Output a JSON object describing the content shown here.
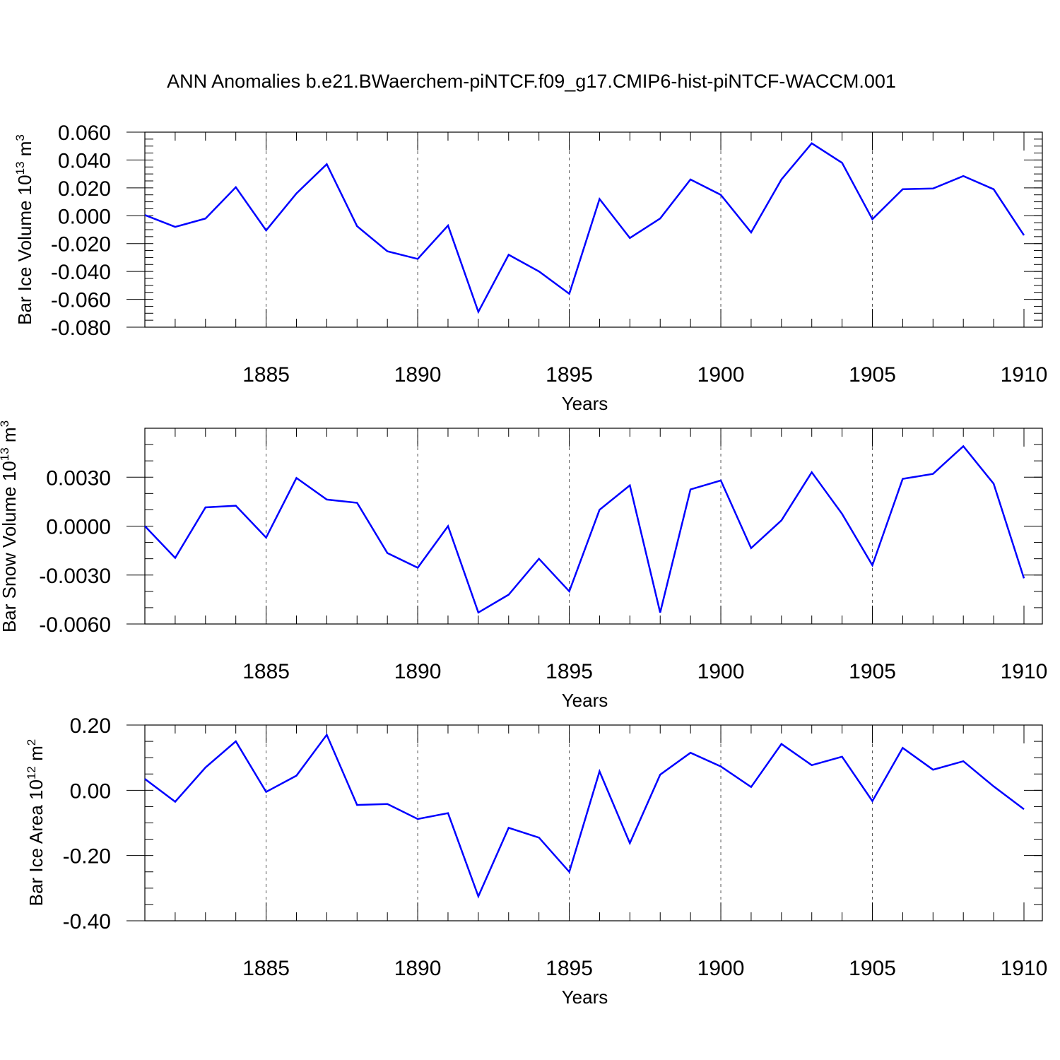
{
  "figure_title": "ANN Anomalies b.e21.BWaerchem-piNTCF.f09_g17.CMIP6-hist-piNTCF-WACCM.001",
  "chart_data": [
    {
      "type": "line",
      "title": "ANN Anomalies b.e21.BWaerchem-piNTCF.f09_g17.CMIP6-hist-piNTCF-WACCM.001",
      "xlabel": "Years",
      "ylabel": "Bar Ice Volume 10",
      "ylabel_exponent": "13",
      "ylabel_unit": "m",
      "ylabel_unit_exponent": "3",
      "xlim": [
        1881,
        1910
      ],
      "ylim": [
        -0.08,
        0.06
      ],
      "x_ticks": [
        1885,
        1890,
        1895,
        1900,
        1905,
        1910
      ],
      "y_ticks": [
        0.06,
        0.04,
        0.02,
        0.0,
        -0.02,
        -0.04,
        -0.06,
        -0.08
      ],
      "y_tick_labels": [
        "0.060",
        "0.040",
        "0.020",
        "0.000",
        "-0.020",
        "-0.040",
        "-0.060",
        "-0.080"
      ],
      "y_minor_step": 0.005,
      "x": [
        1881,
        1882,
        1883,
        1884,
        1885,
        1886,
        1887,
        1888,
        1889,
        1890,
        1891,
        1892,
        1893,
        1894,
        1895,
        1896,
        1897,
        1898,
        1899,
        1900,
        1901,
        1902,
        1903,
        1904,
        1905,
        1906,
        1907,
        1908,
        1909,
        1910
      ],
      "values": [
        0.0005,
        -0.008,
        -0.002,
        0.0205,
        -0.0105,
        0.016,
        0.037,
        -0.0075,
        -0.0255,
        -0.031,
        -0.007,
        -0.069,
        -0.028,
        -0.04,
        -0.056,
        0.012,
        -0.016,
        -0.002,
        0.026,
        0.015,
        -0.012,
        0.026,
        0.052,
        0.038,
        -0.0025,
        0.019,
        0.0195,
        0.0285,
        0.019,
        -0.014
      ],
      "grid": "dashed vertical at major x ticks",
      "color": "#0000ff"
    },
    {
      "type": "line",
      "xlabel": "Years",
      "ylabel": "Bar Snow Volume 10",
      "ylabel_exponent": "13",
      "ylabel_unit": "m",
      "ylabel_unit_exponent": "3",
      "xlim": [
        1881,
        1910
      ],
      "ylim": [
        -0.006,
        0.006
      ],
      "x_ticks": [
        1885,
        1890,
        1895,
        1900,
        1905,
        1910
      ],
      "y_ticks": [
        0.003,
        0.0,
        -0.003,
        -0.006
      ],
      "y_tick_labels": [
        "0.0030",
        "0.0000",
        "-0.0030",
        "-0.0060"
      ],
      "y_minor_step": 0.001,
      "x": [
        1881,
        1882,
        1883,
        1884,
        1885,
        1886,
        1887,
        1888,
        1889,
        1890,
        1891,
        1892,
        1893,
        1894,
        1895,
        1896,
        1897,
        1898,
        1899,
        1900,
        1901,
        1902,
        1903,
        1904,
        1905,
        1906,
        1907,
        1908,
        1909,
        1910
      ],
      "values": [
        0.0,
        -0.00195,
        0.00115,
        0.00125,
        -0.0007,
        0.00295,
        0.00163,
        0.00143,
        -0.00165,
        -0.00255,
        0.0,
        -0.0053,
        -0.0042,
        -0.002,
        -0.004,
        0.001,
        0.0025,
        -0.0053,
        0.00225,
        0.0028,
        -0.00135,
        0.00035,
        0.0033,
        0.00075,
        -0.0024,
        0.0029,
        0.0032,
        0.0049,
        0.0026,
        -0.0032
      ],
      "grid": "dashed vertical at major x ticks",
      "color": "#0000ff"
    },
    {
      "type": "line",
      "xlabel": "Years",
      "ylabel": "Bar Ice Area 10",
      "ylabel_exponent": "12",
      "ylabel_unit": "m",
      "ylabel_unit_exponent": "2",
      "xlim": [
        1881,
        1910
      ],
      "ylim": [
        -0.4,
        0.2
      ],
      "x_ticks": [
        1885,
        1890,
        1895,
        1900,
        1905,
        1910
      ],
      "y_ticks": [
        0.2,
        0.0,
        -0.2,
        -0.4
      ],
      "y_tick_labels": [
        "0.20",
        "0.00",
        "-0.20",
        "-0.40"
      ],
      "y_minor_step": 0.05,
      "x": [
        1881,
        1882,
        1883,
        1884,
        1885,
        1886,
        1887,
        1888,
        1889,
        1890,
        1891,
        1892,
        1893,
        1894,
        1895,
        1896,
        1897,
        1898,
        1899,
        1900,
        1901,
        1902,
        1903,
        1904,
        1905,
        1906,
        1907,
        1908,
        1909,
        1910
      ],
      "values": [
        0.035,
        -0.035,
        0.07,
        0.15,
        -0.005,
        0.045,
        0.17,
        -0.045,
        -0.042,
        -0.088,
        -0.07,
        -0.325,
        -0.115,
        -0.145,
        -0.25,
        0.058,
        -0.162,
        0.048,
        0.115,
        0.073,
        0.01,
        0.142,
        0.077,
        0.103,
        -0.033,
        0.13,
        0.063,
        0.089,
        0.012,
        -0.058
      ],
      "grid": "dashed vertical at major x ticks",
      "color": "#0000ff"
    }
  ]
}
